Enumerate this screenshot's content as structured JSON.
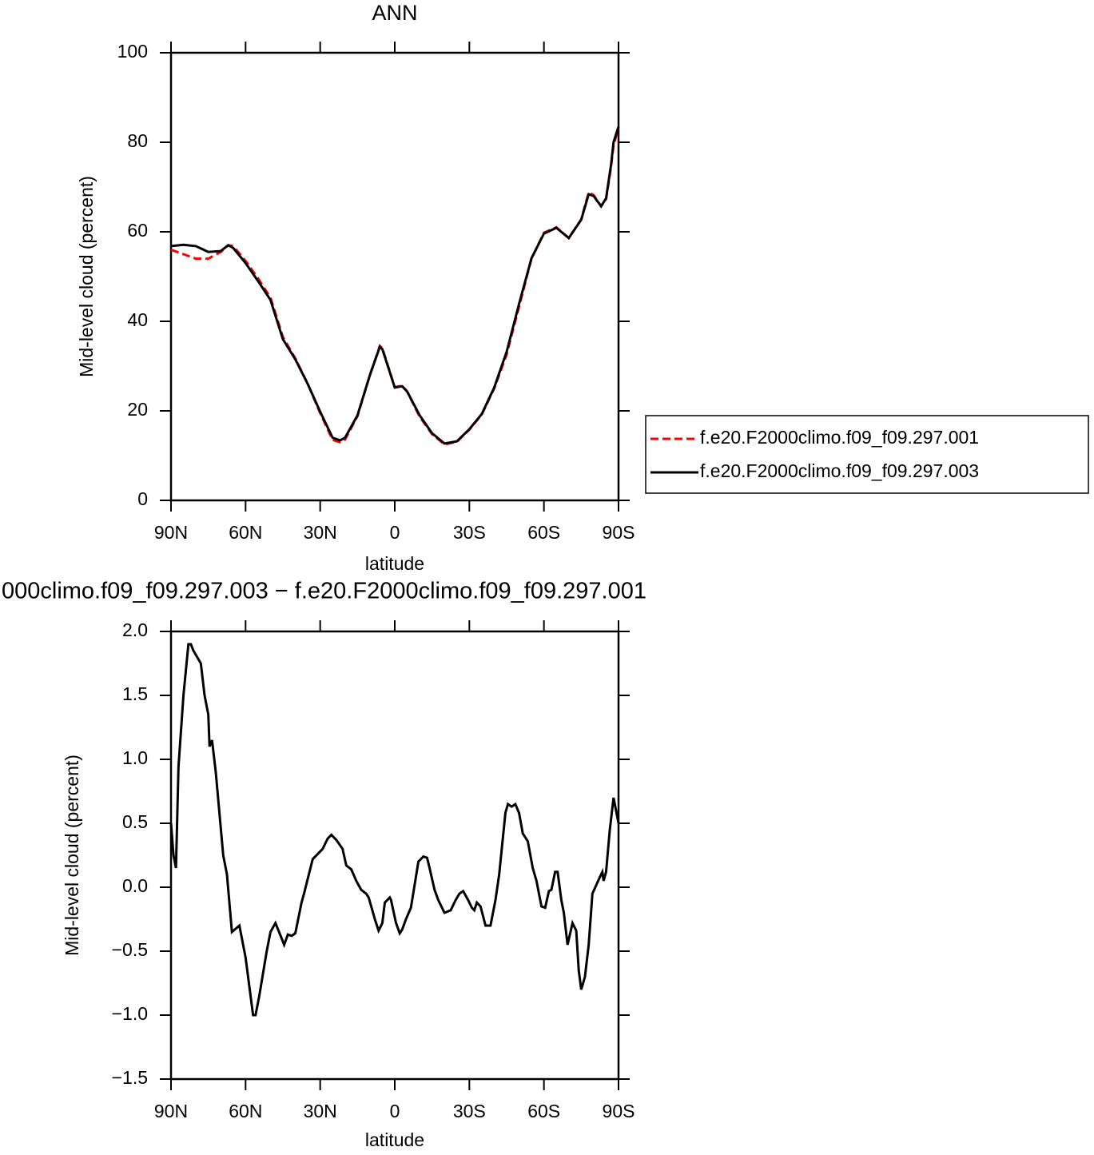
{
  "chart_data": [
    {
      "type": "line",
      "title": "ANN",
      "x_label": "latitude",
      "y_label": "Mid-level cloud (percent)",
      "x": [
        90,
        85,
        80,
        75,
        70,
        67,
        65,
        60,
        55,
        50,
        45,
        40,
        35,
        30,
        25,
        22,
        20,
        15,
        10,
        6,
        5,
        0,
        -3,
        -5,
        -10,
        -15,
        -20,
        -25,
        -30,
        -35,
        -40,
        -45,
        -50,
        -55,
        -60,
        -65,
        -70,
        -75,
        -78,
        -80,
        -83,
        -85,
        -87,
        -88,
        -90
      ],
      "series": [
        {
          "name": "f.e20.F2000climo.f09_f09.297.001",
          "color": "#ff0000",
          "dashed": true,
          "values": [
            56,
            55,
            54,
            54,
            55.5,
            57,
            56.8,
            53.5,
            49.6,
            45.3,
            36.5,
            31.7,
            26,
            19.5,
            13.5,
            13,
            13.6,
            18.8,
            28,
            34.5,
            34,
            25.3,
            25.6,
            24.3,
            18.7,
            14.8,
            12.5,
            13.1,
            15.8,
            19.2,
            25,
            32.6,
            43.3,
            54,
            59.8,
            61,
            58.6,
            62.8,
            68.8,
            68.2,
            65.7,
            67.3,
            74.5,
            79.5,
            83
          ]
        },
        {
          "name": "f.e20.F2000climo.f09_f09.297.003",
          "color": "#000000",
          "dashed": false,
          "values": [
            56.8,
            57.1,
            56.8,
            55.5,
            55.7,
            57,
            56.4,
            53,
            49,
            44.8,
            36,
            31.5,
            26,
            19.8,
            14,
            13.4,
            14,
            19,
            28,
            34.3,
            33.8,
            25.2,
            25.5,
            24.3,
            19,
            15,
            12.7,
            13.2,
            15.9,
            19.3,
            25.2,
            33.2,
            43.9,
            54.1,
            59.6,
            60.9,
            58.6,
            62.7,
            68.4,
            68,
            65.7,
            67.5,
            75,
            80,
            83.5
          ]
        }
      ],
      "xlim": [
        90,
        -90
      ],
      "xticks": [
        {
          "value": 90,
          "label": "90N"
        },
        {
          "value": 60,
          "label": "60N"
        },
        {
          "value": 30,
          "label": "30N"
        },
        0,
        {
          "value": -30,
          "label": "30S"
        },
        {
          "value": -60,
          "label": "60S"
        },
        {
          "value": -90,
          "label": "90S"
        }
      ],
      "ylim": [
        0,
        100
      ],
      "yticks": [
        0,
        20,
        40,
        60,
        80,
        100
      ],
      "legend": "right"
    },
    {
      "type": "line",
      "title": "000climo.f09_f09.297.003 − f.e20.F2000climo.f09_f09.297.001",
      "x_label": "latitude",
      "y_label": "Mid-level cloud (percent)",
      "x": [
        90,
        89,
        88,
        87,
        85,
        83,
        82,
        81,
        78,
        76.5,
        75,
        74.5,
        73.5,
        72,
        69,
        67.5,
        65.5,
        62.5,
        60,
        57,
        56,
        54.5,
        51.5,
        50,
        48,
        45.5,
        44.5,
        43,
        41.5,
        40,
        37.5,
        36.5,
        33,
        31,
        29,
        27,
        25.5,
        23.5,
        21,
        19.5,
        17.5,
        15.5,
        13.5,
        11.5,
        10.5,
        8,
        6.5,
        5,
        4,
        2,
        1.5,
        -0.5,
        -2,
        -3,
        -4.5,
        -6.5,
        -9.5,
        -11.5,
        -13,
        -14,
        -16,
        -17.5,
        -20,
        -22.5,
        -24.5,
        -26,
        -27.5,
        -29.5,
        -31,
        -32,
        -33,
        -34.5,
        -36.5,
        -38.5,
        -40.5,
        -42,
        -44.5,
        -45.5,
        -47,
        -48.5,
        -50,
        -51.5,
        -53.5,
        -55.5,
        -57,
        -59,
        -60.5,
        -62,
        -63,
        -64.5,
        -65.5,
        -67,
        -68,
        -69.5,
        -71.5,
        -73,
        -74,
        -75,
        -76.5,
        -78,
        -79.5,
        -82.5,
        -83.5,
        -84,
        -85,
        -86.5,
        -88,
        -90
      ],
      "values": [
        0.5,
        0.25,
        0.15,
        0.94,
        1.5,
        1.9,
        1.9,
        1.85,
        1.75,
        1.5,
        1.35,
        1.1,
        1.15,
        0.9,
        0.25,
        0.1,
        -0.35,
        -0.3,
        -0.55,
        -1.0,
        -1.0,
        -0.85,
        -0.5,
        -0.35,
        -0.28,
        -0.4,
        -0.45,
        -0.37,
        -0.38,
        -0.36,
        -0.12,
        -0.05,
        0.22,
        0.26,
        0.3,
        0.38,
        0.41,
        0.37,
        0.3,
        0.17,
        0.14,
        0.05,
        -0.02,
        -0.05,
        -0.08,
        -0.25,
        -0.34,
        -0.28,
        -0.12,
        -0.08,
        -0.1,
        -0.28,
        -0.36,
        -0.33,
        -0.25,
        -0.16,
        0.2,
        0.24,
        0.23,
        0.15,
        -0.02,
        -0.1,
        -0.2,
        -0.18,
        -0.1,
        -0.05,
        -0.03,
        -0.1,
        -0.16,
        -0.18,
        -0.12,
        -0.15,
        -0.3,
        -0.3,
        -0.1,
        0.1,
        0.58,
        0.65,
        0.63,
        0.65,
        0.58,
        0.42,
        0.36,
        0.15,
        0.05,
        -0.15,
        -0.16,
        -0.03,
        -0.02,
        0.12,
        0.12,
        -0.1,
        -0.2,
        -0.45,
        -0.28,
        -0.34,
        -0.65,
        -0.8,
        -0.7,
        -0.45,
        -0.05,
        0.08,
        0.12,
        0.05,
        0.12,
        0.45,
        0.7,
        0.5
      ],
      "color": "#000000",
      "xlim": [
        90,
        -90
      ],
      "xticks": [
        {
          "value": 90,
          "label": "90N"
        },
        {
          "value": 60,
          "label": "60N"
        },
        {
          "value": 30,
          "label": "30N"
        },
        0,
        {
          "value": -30,
          "label": "30S"
        },
        {
          "value": -60,
          "label": "60S"
        },
        {
          "value": -90,
          "label": "90S"
        }
      ],
      "ylim": [
        -1.5,
        2.0
      ],
      "yticks": [
        {
          "value": -1.5,
          "label": "−1.5"
        },
        {
          "value": -1.0,
          "label": "−1.0"
        },
        {
          "value": -0.5,
          "label": "−0.5"
        },
        {
          "value": 0.0,
          "label": "0.0"
        },
        {
          "value": 0.5,
          "label": "0.5"
        },
        {
          "value": 1.0,
          "label": "1.0"
        },
        {
          "value": 1.5,
          "label": "1.5"
        },
        {
          "value": 2.0,
          "label": "2.0"
        }
      ]
    }
  ]
}
